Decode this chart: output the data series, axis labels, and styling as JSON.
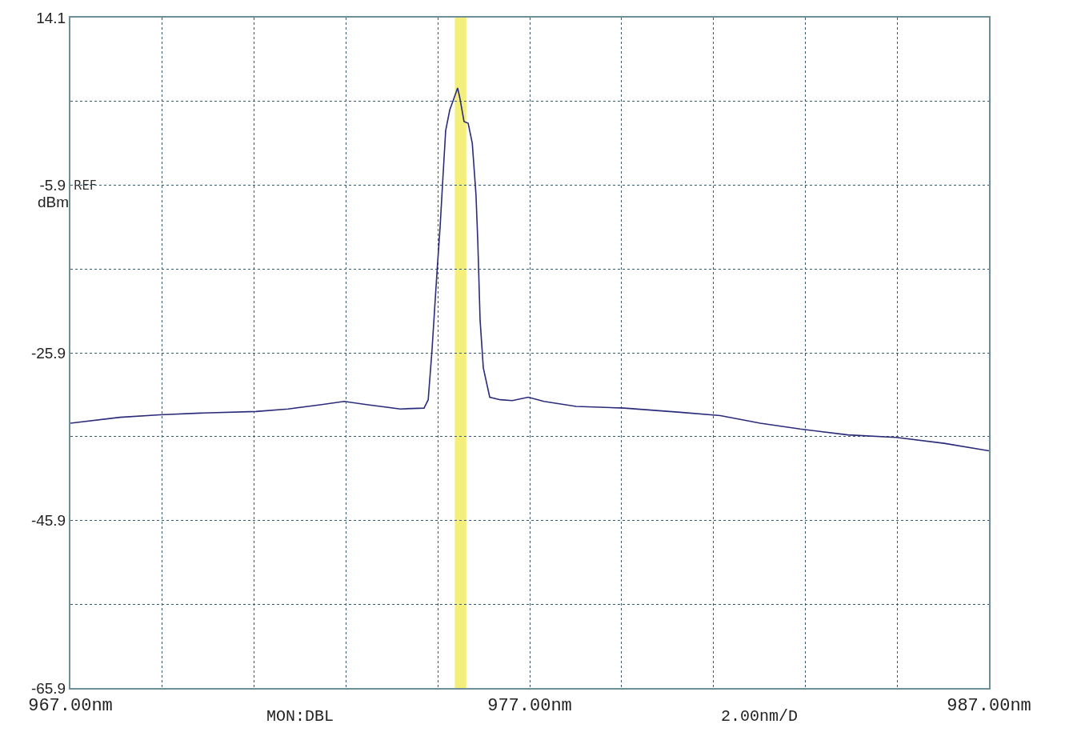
{
  "chart_data": {
    "type": "line",
    "ylabel": "dBm",
    "x": [
      967.0,
      968.08,
      968.95,
      969.82,
      971.04,
      971.74,
      972.44,
      972.96,
      973.48,
      974.18,
      974.7,
      974.79,
      974.87,
      974.98,
      975.05,
      975.1,
      975.17,
      975.26,
      975.34,
      975.43,
      975.48,
      975.57,
      975.66,
      975.75,
      975.83,
      975.87,
      975.92,
      975.99,
      976.13,
      976.36,
      976.62,
      976.97,
      977.31,
      978.01,
      979.06,
      980.28,
      981.15,
      982.02,
      982.89,
      983.93,
      984.98,
      986.02,
      987.0
    ],
    "series": [
      {
        "color": "#2b2b7c",
        "values": [
          -34.3,
          -33.6,
          -33.3,
          -33.1,
          -32.9,
          -32.6,
          -32.1,
          -31.7,
          -32.1,
          -32.6,
          -32.5,
          -31.5,
          -25.8,
          -16.4,
          -10.8,
          -6.0,
          0.6,
          3.1,
          4.3,
          5.7,
          4.5,
          1.7,
          1.5,
          -0.9,
          -7.0,
          -12.6,
          -22.0,
          -27.7,
          -31.2,
          -31.5,
          -31.6,
          -31.2,
          -31.7,
          -32.3,
          -32.5,
          -33.0,
          -33.4,
          -34.3,
          -35.0,
          -35.7,
          -36.0,
          -36.7,
          -37.6
        ]
      }
    ],
    "xlim": [
      967,
      987
    ],
    "xticks": [
      {
        "value": 967,
        "label": "967.00nm"
      },
      {
        "value": 969,
        "label": null
      },
      {
        "value": 971,
        "label": null
      },
      {
        "value": 973,
        "label": null
      },
      {
        "value": 975,
        "label": null
      },
      {
        "value": 977,
        "label": "977.00nm"
      },
      {
        "value": 979,
        "label": null
      },
      {
        "value": 981,
        "label": null
      },
      {
        "value": 983,
        "label": null
      },
      {
        "value": 985,
        "label": null
      },
      {
        "value": 987,
        "label": "987.00nm"
      }
    ],
    "ylim": [
      -65.9,
      14.1
    ],
    "yticks": [
      14.1,
      {
        "value": 4.1,
        "label": null
      },
      -5.9,
      {
        "value": -15.9,
        "label": null
      },
      -25.9,
      {
        "value": -35.9,
        "label": null
      },
      -45.9,
      {
        "value": -55.9,
        "label": null
      },
      -65.9
    ],
    "bands": [
      {
        "axis": "x",
        "from": 975.37,
        "to": 975.62,
        "color": "#f4ef7a"
      }
    ],
    "annotations": [
      "REF",
      "MON:DBL",
      "2.00nm/D"
    ],
    "grid": true,
    "line_style": "solid",
    "marker": "none",
    "legend": false
  }
}
